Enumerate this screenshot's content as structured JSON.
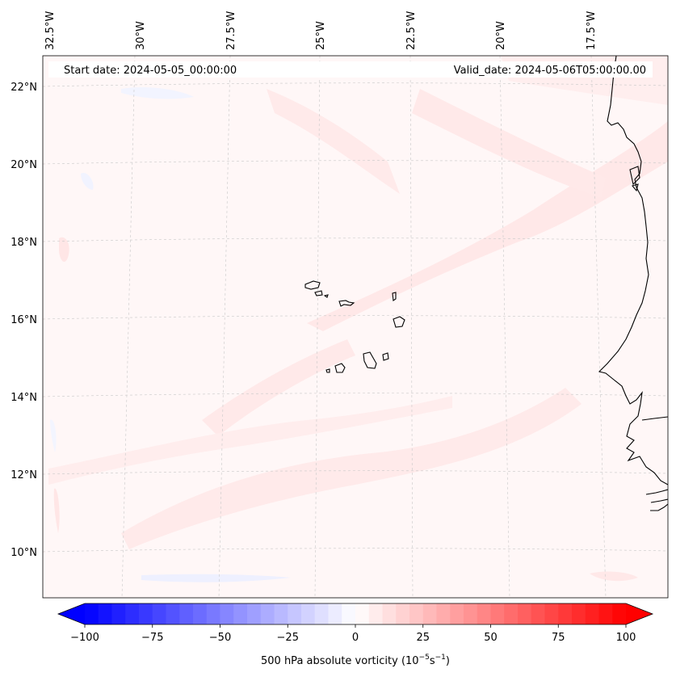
{
  "header": {
    "start_date": "Start date: 2024-05-05_00:00:00",
    "valid_date": "Valid_date: 2024-05-06T05:00:00.00"
  },
  "axes": {
    "longitude_labels": [
      "32.5°W",
      "30°W",
      "27.5°W",
      "25°W",
      "22.5°W",
      "20°W",
      "17.5°W"
    ],
    "latitude_labels": [
      "22°N",
      "20°N",
      "18°N",
      "16°N",
      "14°N",
      "12°N",
      "10°N"
    ],
    "gridlines": true
  },
  "colorbar": {
    "tick_labels": [
      "−100",
      "−75",
      "−50",
      "−25",
      "0",
      "25",
      "50",
      "75",
      "100"
    ],
    "label_text": "500 hPa absolute vorticity (10",
    "label_exp1": "−5",
    "label_mid": "s",
    "label_exp2": "−1",
    "label_end": ")",
    "min_color": "#0000ff",
    "mid_color": "#ffffff",
    "max_color": "#ff0000",
    "levels": 40,
    "extend": "both"
  },
  "map": {
    "background_color": "#fff7f7",
    "field_tint_positive": "#ffe6e6",
    "field_tint_negative": "#f4f6ff",
    "coastline_color": "#000000"
  }
}
